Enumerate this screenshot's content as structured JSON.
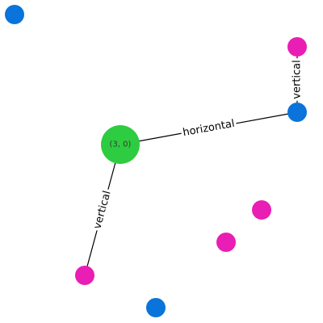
{
  "graph": {
    "nodes": [
      {
        "id": "n0",
        "label": "(3, 0)",
        "color": "#2ecc40",
        "role": "root"
      },
      {
        "id": "n1",
        "label": "",
        "color": "#0a74da"
      },
      {
        "id": "n2",
        "label": "",
        "color": "#0a74da"
      },
      {
        "id": "n3",
        "label": "",
        "color": "#0a74da"
      },
      {
        "id": "n4",
        "label": "",
        "color": "#e91eb5"
      },
      {
        "id": "n5",
        "label": "",
        "color": "#e91eb5"
      },
      {
        "id": "n6",
        "label": "",
        "color": "#e91eb5"
      },
      {
        "id": "n7",
        "label": "",
        "color": "#e91eb5"
      }
    ],
    "edges": [
      {
        "source": "n0",
        "target": "n2",
        "label": "horizontal"
      },
      {
        "source": "n2",
        "target": "n4",
        "label": "vertical"
      },
      {
        "source": "n0",
        "target": "n7",
        "label": "vertical"
      }
    ]
  }
}
